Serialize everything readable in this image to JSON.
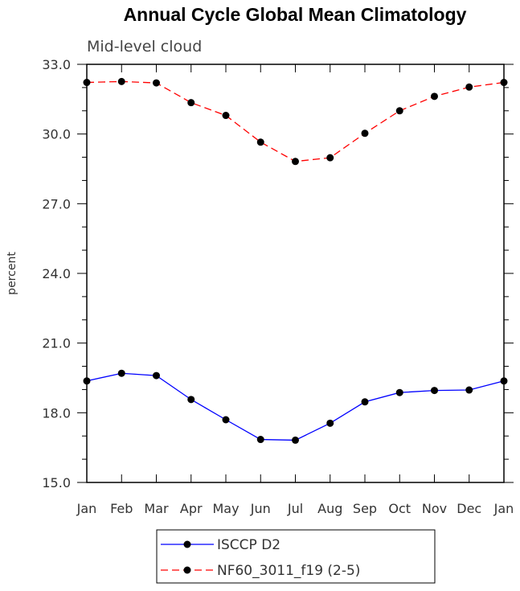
{
  "chart_data": {
    "type": "line",
    "title": "Annual Cycle Global Mean Climatology",
    "subtitle": "Mid-level cloud",
    "ylabel": "percent",
    "xlabel": "",
    "categories": [
      "Jan",
      "Feb",
      "Mar",
      "Apr",
      "May",
      "Jun",
      "Jul",
      "Aug",
      "Sep",
      "Oct",
      "Nov",
      "Dec",
      "Jan"
    ],
    "ylim": [
      15.0,
      33.0
    ],
    "yticks": [
      "15.0",
      "18.0",
      "21.0",
      "24.0",
      "27.0",
      "30.0",
      "33.0"
    ],
    "grid": false,
    "legend_position": "bottom",
    "series": [
      {
        "name": "ISCCP D2",
        "color": "#0000ff",
        "style": "solid",
        "marker": "circle",
        "values": [
          19.37,
          19.7,
          19.6,
          18.57,
          17.7,
          16.85,
          16.82,
          17.55,
          18.47,
          18.87,
          18.96,
          18.98,
          19.37
        ]
      },
      {
        "name": "NF60_3011_f19 (2-5)",
        "color": "#ff0000",
        "style": "dashed",
        "marker": "circle",
        "values": [
          32.22,
          32.26,
          32.2,
          31.35,
          30.8,
          29.65,
          28.82,
          28.98,
          30.03,
          31.0,
          31.62,
          32.02,
          32.22
        ]
      }
    ]
  }
}
